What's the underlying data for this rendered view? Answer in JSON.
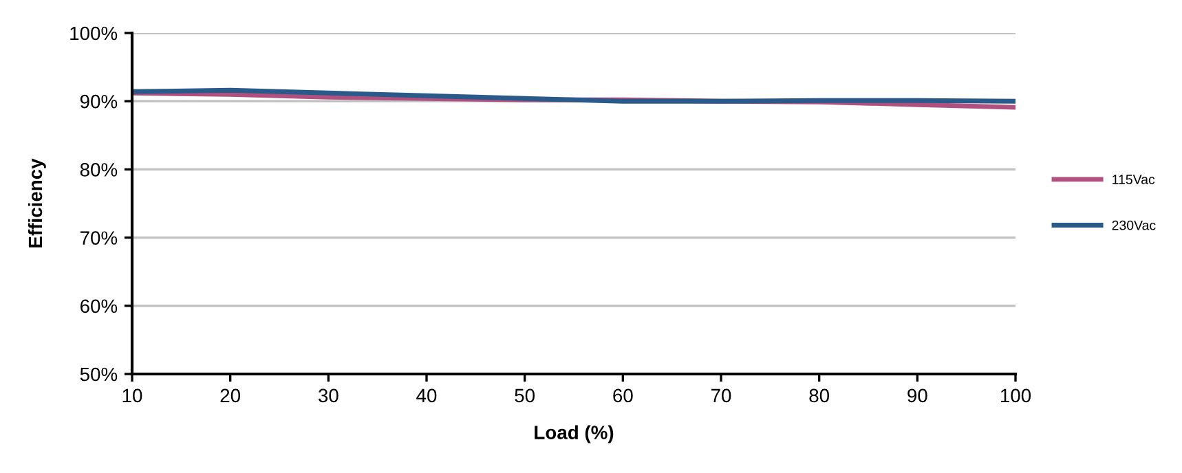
{
  "chart_data": {
    "type": "line",
    "xlabel": "Load (%)",
    "ylabel": "Efficiency",
    "x": [
      10,
      20,
      30,
      40,
      50,
      60,
      70,
      80,
      90,
      100
    ],
    "series": [
      {
        "name": "115Vac",
        "color": "#b0507f",
        "values": [
          91.2,
          91.0,
          90.6,
          90.4,
          90.2,
          90.2,
          90.0,
          89.9,
          89.5,
          89.1
        ]
      },
      {
        "name": "230Vac",
        "color": "#2a5a8a",
        "values": [
          91.4,
          91.6,
          91.2,
          90.8,
          90.4,
          90.0,
          90.0,
          90.1,
          90.1,
          90.0
        ]
      }
    ],
    "xlim": [
      10,
      100
    ],
    "xticks": [
      10,
      20,
      30,
      40,
      50,
      60,
      70,
      80,
      90,
      100
    ],
    "ylim": [
      50,
      100
    ],
    "yticks": [
      {
        "value": 50,
        "label": "50%"
      },
      {
        "value": 60,
        "label": "60%"
      },
      {
        "value": 70,
        "label": "70%"
      },
      {
        "value": 80,
        "label": "80%"
      },
      {
        "value": 90,
        "label": "90%"
      },
      {
        "value": 100,
        "label": "100%"
      }
    ],
    "grid": "y",
    "legend": "right",
    "marker": "none",
    "line_style": "solid"
  }
}
